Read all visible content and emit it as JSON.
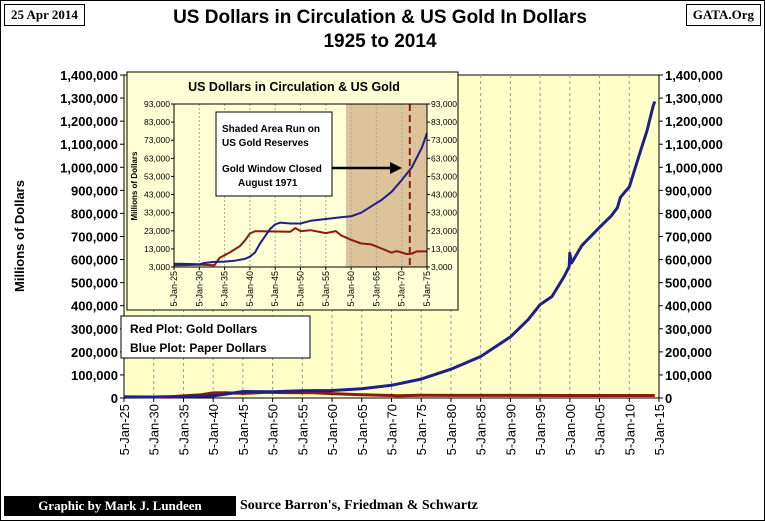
{
  "header": {
    "date": "25 Apr 2014",
    "site": "GATA.Org",
    "title_line1": "US Dollars in Circulation & US Gold In Dollars",
    "title_line2": "1925 to 2014"
  },
  "footer": {
    "credit": "Graphic by Mark J. Lundeen",
    "source": "Source Barron's,  Friedman & Schwartz"
  },
  "colors": {
    "plot_bg": "#ffffc8",
    "inset_bg": "#ffffd6",
    "shade": "#dcc39a",
    "blue": "#1f1f8a",
    "red": "#8b1a0e"
  },
  "chart_data": [
    {
      "type": "line",
      "title": "US Dollars in Circulation & US Gold In Dollars 1925 to 2014",
      "ylabel": "Millions of Dollars",
      "xlabel": "",
      "ylim": [
        0,
        1400000
      ],
      "y_ticks": [
        0,
        100000,
        200000,
        300000,
        400000,
        500000,
        600000,
        700000,
        800000,
        900000,
        1000000,
        1100000,
        1200000,
        1300000,
        1400000
      ],
      "y_tick_labels": [
        "0",
        "100,000",
        "200,000",
        "300,000",
        "400,000",
        "500,000",
        "600,000",
        "700,000",
        "800,000",
        "900,000",
        "1,000,000",
        "1,100,000",
        "1,200,000",
        "1,300,000",
        "1,400,000"
      ],
      "x_range": [
        1925,
        2015
      ],
      "x_ticks": [
        1925,
        1930,
        1935,
        1940,
        1945,
        1950,
        1955,
        1960,
        1965,
        1970,
        1975,
        1980,
        1985,
        1990,
        1995,
        2000,
        2005,
        2010,
        2015
      ],
      "x_tick_labels": [
        "5-Jan-25",
        "5-Jan-30",
        "5-Jan-35",
        "5-Jan-40",
        "5-Jan-45",
        "5-Jan-50",
        "5-Jan-55",
        "5-Jan-60",
        "5-Jan-65",
        "5-Jan-70",
        "5-Jan-75",
        "5-Jan-80",
        "5-Jan-85",
        "5-Jan-90",
        "5-Jan-95",
        "5-Jan-00",
        "5-Jan-05",
        "5-Jan-10",
        "5-Jan-15"
      ],
      "legend": [
        "Red Plot: Gold Dollars",
        "Blue Plot: Paper Dollars"
      ],
      "legend_position": "upper-left",
      "series": [
        {
          "name": "Paper Dollars",
          "color": "blue",
          "points": [
            [
              1925,
              5000
            ],
            [
              1930,
              4500
            ],
            [
              1933,
              6000
            ],
            [
              1935,
              6500
            ],
            [
              1940,
              9000
            ],
            [
              1943,
              20000
            ],
            [
              1945,
              28000
            ],
            [
              1950,
              27500
            ],
            [
              1955,
              31000
            ],
            [
              1960,
              32500
            ],
            [
              1965,
              40000
            ],
            [
              1970,
              55000
            ],
            [
              1975,
              82000
            ],
            [
              1980,
              125000
            ],
            [
              1985,
              180000
            ],
            [
              1990,
              265000
            ],
            [
              1993,
              340000
            ],
            [
              1995,
              405000
            ],
            [
              1997,
              440000
            ],
            [
              1999,
              525000
            ],
            [
              1999.9,
              570000
            ],
            [
              2000,
              628000
            ],
            [
              2000.3,
              585000
            ],
            [
              2002,
              660000
            ],
            [
              2005,
              740000
            ],
            [
              2007,
              790000
            ],
            [
              2008,
              825000
            ],
            [
              2008.5,
              870000
            ],
            [
              2010,
              915000
            ],
            [
              2012,
              1080000
            ],
            [
              2013,
              1160000
            ],
            [
              2014,
              1265000
            ],
            [
              2014.3,
              1285000
            ]
          ]
        },
        {
          "name": "Gold Dollars",
          "color": "red",
          "points": [
            [
              1925,
              4000
            ],
            [
              1930,
              4300
            ],
            [
              1933,
              4000
            ],
            [
              1934,
              8000
            ],
            [
              1938,
              14500
            ],
            [
              1940,
              22000
            ],
            [
              1942,
              22700
            ],
            [
              1945,
              20000
            ],
            [
              1949,
              24500
            ],
            [
              1952,
              23300
            ],
            [
              1957,
              22800
            ],
            [
              1960,
              19000
            ],
            [
              1965,
              14000
            ],
            [
              1970,
              11000
            ],
            [
              1971,
              10100
            ],
            [
              1975,
              11600
            ],
            [
              1980,
              11200
            ],
            [
              1990,
              11100
            ],
            [
              2000,
              11000
            ],
            [
              2014.3,
              11000
            ]
          ]
        }
      ]
    },
    {
      "type": "line",
      "title": "US Dollars in Circulation & US Gold",
      "ylabel": "Millions of Dollars",
      "ylim": [
        3000,
        93000
      ],
      "y_ticks": [
        3000,
        13000,
        23000,
        33000,
        43000,
        53000,
        63000,
        73000,
        83000,
        93000
      ],
      "y_tick_labels": [
        "3,000",
        "13,000",
        "23,000",
        "33,000",
        "43,000",
        "53,000",
        "63,000",
        "73,000",
        "83,000",
        "93,000"
      ],
      "x_range": [
        1925,
        1975
      ],
      "x_ticks": [
        1925,
        1930,
        1935,
        1940,
        1945,
        1950,
        1955,
        1960,
        1965,
        1970,
        1975
      ],
      "x_tick_labels": [
        "5-Jan-25",
        "5-Jan-30",
        "5-Jan-35",
        "5-Jan-40",
        "5-Jan-45",
        "5-Jan-50",
        "5-Jan-55",
        "5-Jan-60",
        "5-Jan-65",
        "5-Jan-70",
        "5-Jan-75"
      ],
      "shaded_range": [
        1959,
        1975
      ],
      "marker_line_x": 1971.6,
      "annotations": [
        "Shaded Area Run on US Gold Reserves",
        "Gold Window Closed August 1971"
      ],
      "series": [
        {
          "name": "Paper Dollars",
          "color": "blue",
          "points": [
            [
              1925,
              4800
            ],
            [
              1927,
              4700
            ],
            [
              1930,
              4500
            ],
            [
              1931,
              5200
            ],
            [
              1933,
              5800
            ],
            [
              1935,
              6000
            ],
            [
              1937,
              6500
            ],
            [
              1939,
              7500
            ],
            [
              1940,
              8700
            ],
            [
              1941,
              11000
            ],
            [
              1942,
              16000
            ],
            [
              1943,
              20000
            ],
            [
              1944,
              24000
            ],
            [
              1945,
              26500
            ],
            [
              1946,
              27500
            ],
            [
              1948,
              27000
            ],
            [
              1950,
              27000
            ],
            [
              1952,
              28500
            ],
            [
              1955,
              29500
            ],
            [
              1958,
              30500
            ],
            [
              1960,
              31000
            ],
            [
              1962,
              33000
            ],
            [
              1964,
              36500
            ],
            [
              1966,
              40000
            ],
            [
              1968,
              44500
            ],
            [
              1970,
              51000
            ],
            [
              1972,
              58000
            ],
            [
              1974,
              69000
            ],
            [
              1975,
              77000
            ]
          ]
        },
        {
          "name": "Gold Dollars",
          "color": "red",
          "points": [
            [
              1925,
              4000
            ],
            [
              1928,
              4100
            ],
            [
              1930,
              4300
            ],
            [
              1933,
              4000
            ],
            [
              1934,
              8000
            ],
            [
              1936,
              11000
            ],
            [
              1938,
              14500
            ],
            [
              1939,
              17500
            ],
            [
              1940,
              21500
            ],
            [
              1941,
              22700
            ],
            [
              1942,
              22700
            ],
            [
              1948,
              22500
            ],
            [
              1949,
              24500
            ],
            [
              1950,
              22800
            ],
            [
              1952,
              23300
            ],
            [
              1955,
              21700
            ],
            [
              1957,
              22800
            ],
            [
              1958,
              20500
            ],
            [
              1960,
              18000
            ],
            [
              1962,
              16000
            ],
            [
              1964,
              15500
            ],
            [
              1966,
              13200
            ],
            [
              1968,
              10900
            ],
            [
              1969,
              11800
            ],
            [
              1970,
              11000
            ],
            [
              1971,
              10100
            ],
            [
              1972,
              10400
            ],
            [
              1973,
              11600
            ],
            [
              1974,
              11600
            ],
            [
              1975,
              11600
            ]
          ]
        }
      ]
    }
  ]
}
